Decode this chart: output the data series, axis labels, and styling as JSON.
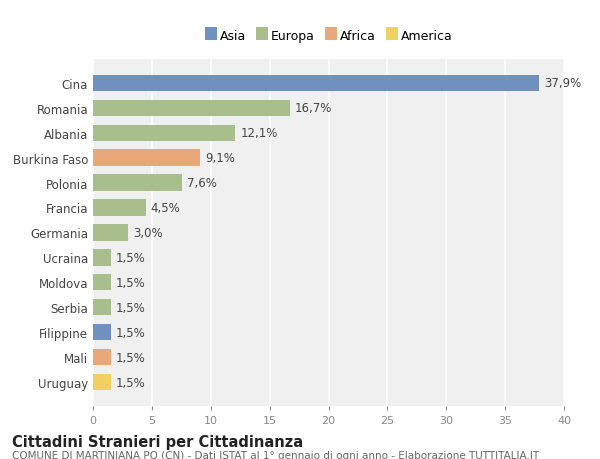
{
  "categories": [
    "Cina",
    "Romania",
    "Albania",
    "Burkina Faso",
    "Polonia",
    "Francia",
    "Germania",
    "Ucraina",
    "Moldova",
    "Serbia",
    "Filippine",
    "Mali",
    "Uruguay"
  ],
  "values": [
    37.9,
    16.7,
    12.1,
    9.1,
    7.6,
    4.5,
    3.0,
    1.5,
    1.5,
    1.5,
    1.5,
    1.5,
    1.5
  ],
  "labels": [
    "37,9%",
    "16,7%",
    "12,1%",
    "9,1%",
    "7,6%",
    "4,5%",
    "3,0%",
    "1,5%",
    "1,5%",
    "1,5%",
    "1,5%",
    "1,5%",
    "1,5%"
  ],
  "continents": [
    "Asia",
    "Europa",
    "Europa",
    "Africa",
    "Europa",
    "Europa",
    "Europa",
    "Europa",
    "Europa",
    "Europa",
    "Asia",
    "Africa",
    "America"
  ],
  "colors": {
    "Asia": "#7090c0",
    "Europa": "#a8be8c",
    "Africa": "#e8a87a",
    "America": "#f0d060"
  },
  "legend_order": [
    "Asia",
    "Europa",
    "Africa",
    "America"
  ],
  "xlim": [
    0,
    40
  ],
  "xticks": [
    0,
    5,
    10,
    15,
    20,
    25,
    30,
    35,
    40
  ],
  "title": "Cittadini Stranieri per Cittadinanza",
  "subtitle": "COMUNE DI MARTINIANA PO (CN) - Dati ISTAT al 1° gennaio di ogni anno - Elaborazione TUTTITALIA.IT",
  "bg_color": "#ffffff",
  "plot_bg_color": "#f0f0f0",
  "bar_height": 0.65,
  "grid_color": "#ffffff",
  "label_fontsize": 8.5,
  "ytick_fontsize": 8.5,
  "xtick_fontsize": 8,
  "title_fontsize": 10.5,
  "subtitle_fontsize": 7.5
}
